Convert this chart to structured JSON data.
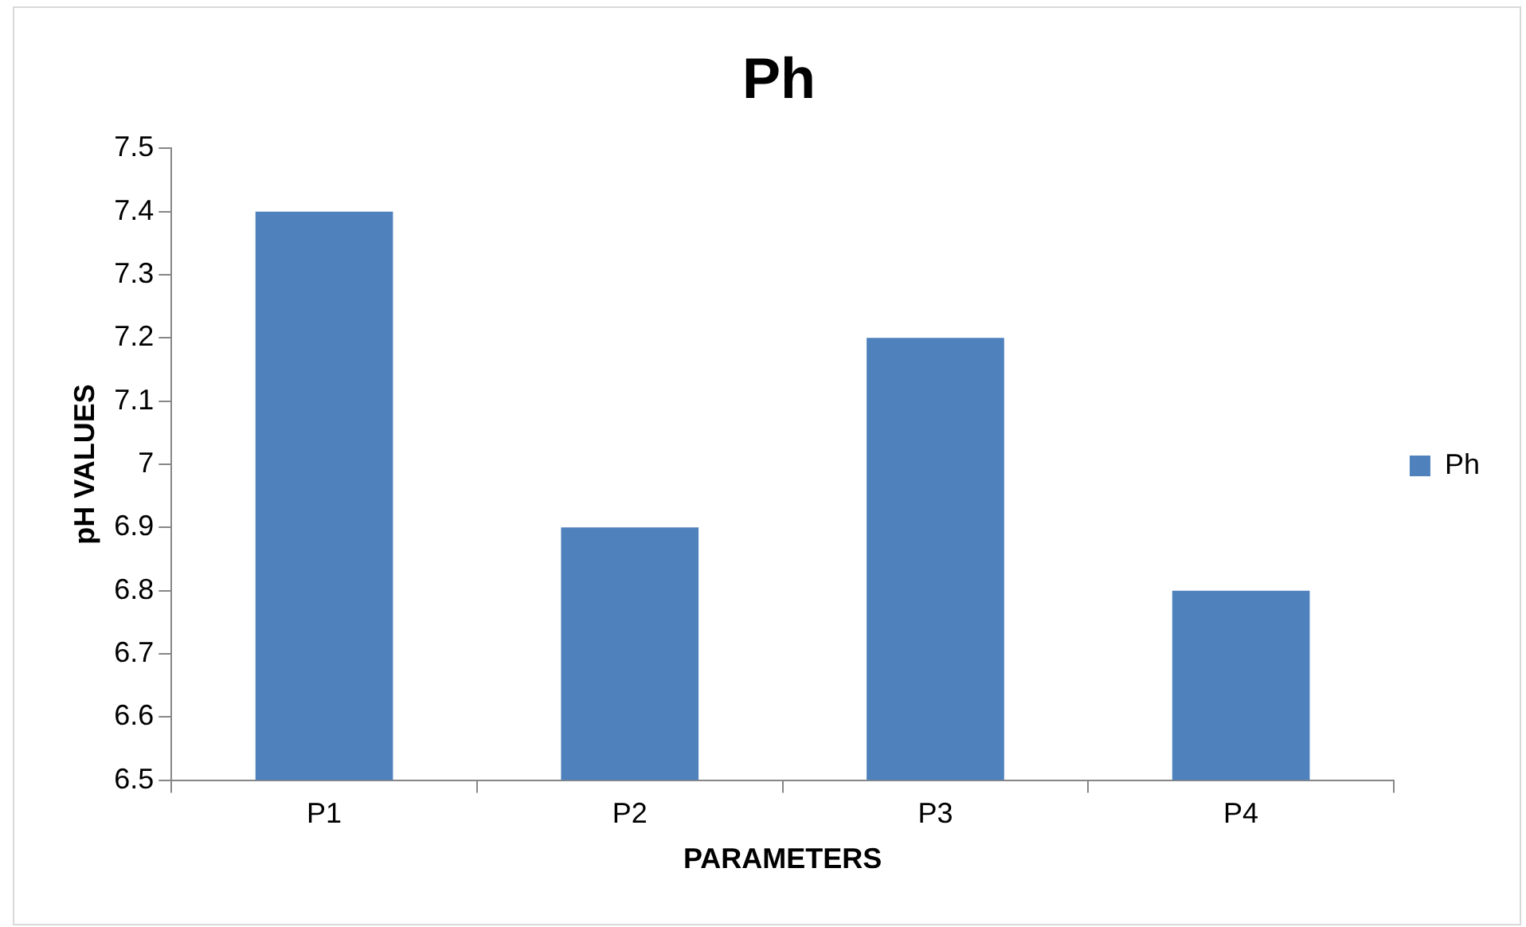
{
  "chart_data": {
    "type": "bar",
    "title": "Ph",
    "xlabel": "PARAMETERS",
    "ylabel": "pH VALUES",
    "categories": [
      "P1",
      "P2",
      "P3",
      "P4"
    ],
    "series": [
      {
        "name": "Ph",
        "color": "#4f81bd",
        "values": [
          7.4,
          6.9,
          7.2,
          6.8
        ]
      }
    ],
    "ylim": [
      6.5,
      7.5
    ],
    "yticks": [
      6.5,
      6.6,
      6.7,
      6.8,
      6.9,
      7,
      7.1,
      7.2,
      7.3,
      7.4,
      7.5
    ],
    "grid": false,
    "legend": "right"
  }
}
